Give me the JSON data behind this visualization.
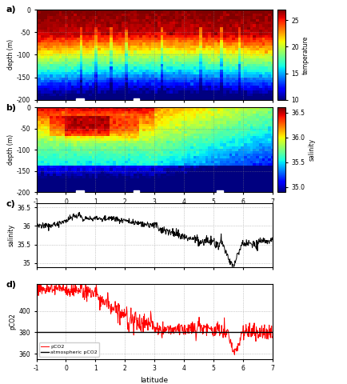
{
  "fig_width": 4.34,
  "fig_height": 4.8,
  "dpi": 100,
  "panel_a_title": "a)",
  "panel_b_title": "b)",
  "panel_c_title": "c)",
  "panel_d_title": "d)",
  "temp_cmap": "jet",
  "temp_vmin": 10,
  "temp_vmax": 27,
  "temp_ticks": [
    10,
    15,
    20,
    25
  ],
  "temp_label": "temperature",
  "sal_vmin": 34.9,
  "sal_vmax": 36.6,
  "sal_ticks": [
    35,
    35.5,
    36,
    36.5
  ],
  "sal_label": "salinity",
  "depth_ticks": [
    0,
    -50,
    -100,
    -150,
    -200
  ],
  "depth_label": "depth (m)",
  "lat_min": -1,
  "lat_max": 7,
  "lat_ticks": [
    -1,
    0,
    1,
    2,
    3,
    4,
    5,
    6,
    7
  ],
  "lat_label": "latitude",
  "sal_surface_ylim": [
    34.9,
    36.6
  ],
  "sal_surface_yticks": [
    35,
    35.5,
    36,
    36.5
  ],
  "pco2_ylim": [
    355,
    425
  ],
  "pco2_yticks": [
    360,
    380,
    400
  ],
  "pco2_atm": 380.0,
  "pco2_label": "pCO2",
  "pco2_atm_label": "atmospheric pCO2"
}
